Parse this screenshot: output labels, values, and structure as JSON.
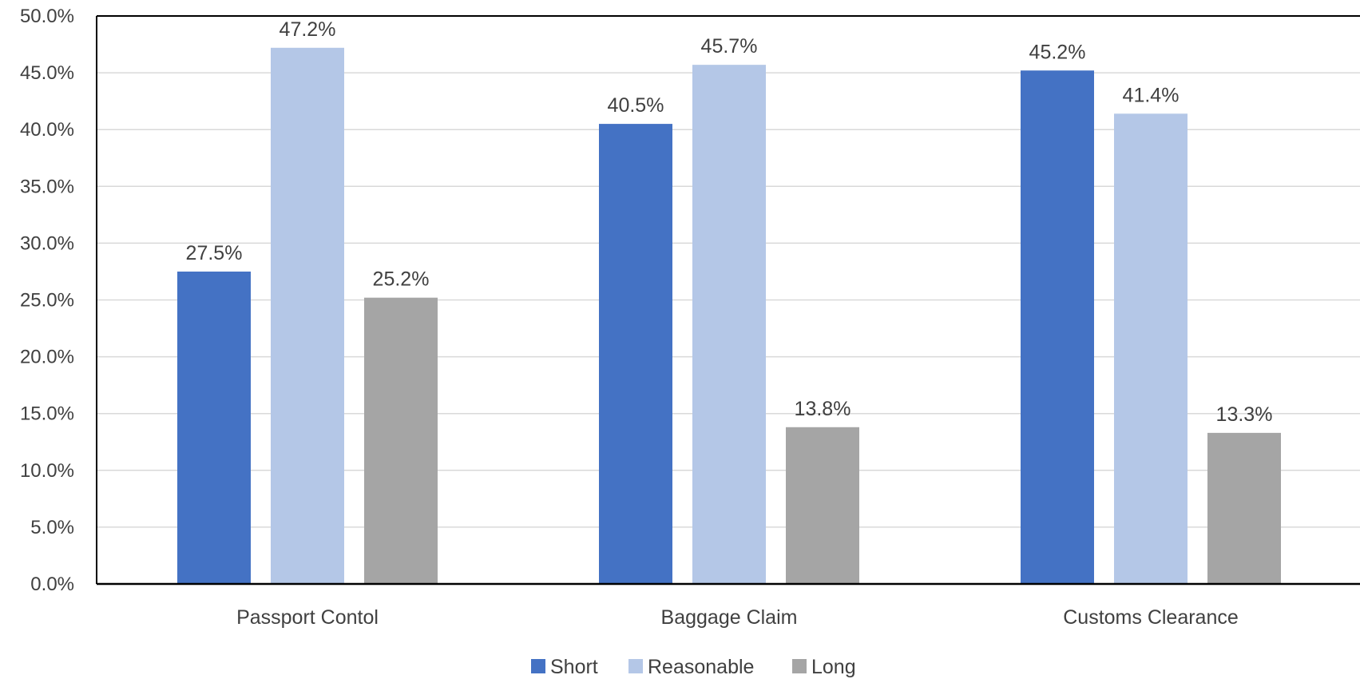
{
  "chart_data": {
    "type": "bar",
    "categories": [
      "Passport Contol",
      "Baggage Claim",
      "Customs Clearance"
    ],
    "series": [
      {
        "name": "Short",
        "values": [
          27.5,
          40.5,
          45.2
        ],
        "color": "#4472C4"
      },
      {
        "name": "Reasonable",
        "values": [
          47.2,
          45.7,
          41.4
        ],
        "color": "#B4C7E7"
      },
      {
        "name": "Long",
        "values": [
          25.2,
          13.8,
          13.3
        ],
        "color": "#A5A5A5"
      }
    ],
    "data_labels": [
      [
        "27.5%",
        "40.5%",
        "45.2%"
      ],
      [
        "47.2%",
        "45.7%",
        "41.4%"
      ],
      [
        "25.2%",
        "13.8%",
        "13.3%"
      ]
    ],
    "title": "",
    "xlabel": "",
    "ylabel": "",
    "ylim": [
      0,
      50
    ],
    "y_ticks": [
      "0.0%",
      "5.0%",
      "10.0%",
      "15.0%",
      "20.0%",
      "25.0%",
      "30.0%",
      "35.0%",
      "40.0%",
      "45.0%",
      "50.0%"
    ],
    "y_tick_values": [
      0,
      5,
      10,
      15,
      20,
      25,
      30,
      35,
      40,
      45,
      50
    ],
    "grid": true,
    "legend_position": "bottom"
  }
}
